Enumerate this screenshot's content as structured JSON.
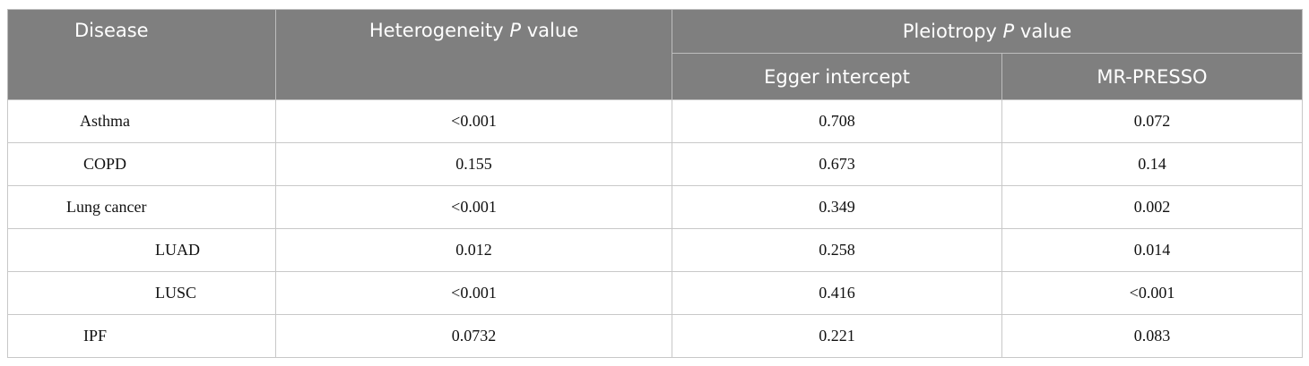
{
  "header": {
    "disease": "Disease",
    "heterogeneity_pre": "Heterogeneity ",
    "heterogeneity_p": "P",
    "heterogeneity_post": " value",
    "pleiotropy_pre": "Pleiotropy ",
    "pleiotropy_p": "P",
    "pleiotropy_post": " value",
    "egger": "Egger intercept",
    "mrpresso": "MR-PRESSO"
  },
  "rows": [
    {
      "disease": "Asthma",
      "heterogeneity": "<0.001",
      "egger": "0.708",
      "mrpresso": "0.072"
    },
    {
      "disease": "COPD",
      "heterogeneity": "0.155",
      "egger": "0.673",
      "mrpresso": "0.14"
    },
    {
      "disease": "Lung cancer",
      "heterogeneity": "<0.001",
      "egger": "0.349",
      "mrpresso": "0.002"
    },
    {
      "disease": "LUAD",
      "heterogeneity": "0.012",
      "egger": "0.258",
      "mrpresso": "0.014"
    },
    {
      "disease": "LUSC",
      "heterogeneity": "<0.001",
      "egger": "0.416",
      "mrpresso": "<0.001"
    },
    {
      "disease": "IPF",
      "heterogeneity": "0.0732",
      "egger": "0.221",
      "mrpresso": "0.083"
    }
  ]
}
